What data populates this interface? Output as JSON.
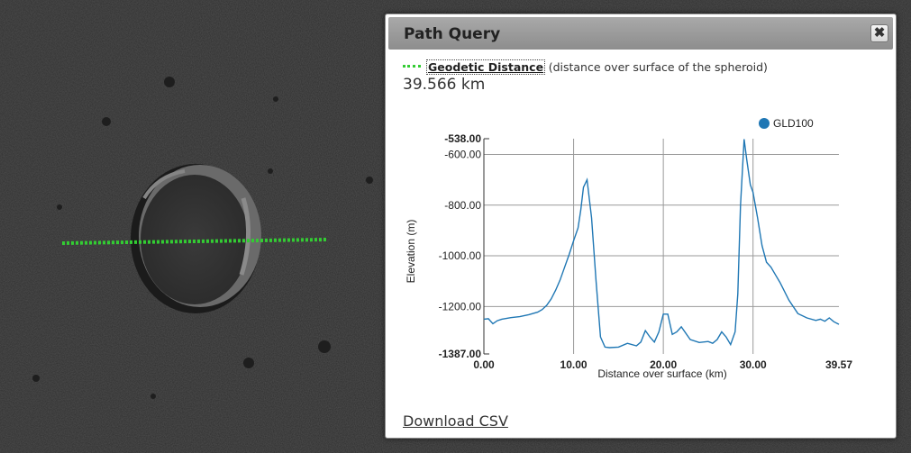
{
  "map": {
    "path_color": "#33cc33"
  },
  "panel": {
    "title": "Path Query",
    "close_label": "✖",
    "distance": {
      "type_label": "Geodetic Distance",
      "description": "(distance over surface of the spheroid)",
      "value": "39.566 km",
      "legend_color": "#33cc33"
    },
    "download_label": "Download CSV"
  },
  "chart_data": {
    "type": "line",
    "xlabel": "Distance over surface (km)",
    "ylabel": "Elevation (m)",
    "xlim": [
      0,
      39.57
    ],
    "ylim": [
      -1387,
      -538
    ],
    "x_ticks": [
      "0.00",
      "10.00",
      "20.00",
      "30.00",
      "39.57"
    ],
    "y_ticks": [
      "-538.00",
      "-600.00",
      "-800.00",
      "-1000.00",
      "-1200.00",
      "-1387.00"
    ],
    "grid": true,
    "legend_position": "top-right",
    "series": [
      {
        "name": "GLD100",
        "color": "#1f77b4",
        "x": [
          0,
          0.5,
          1.0,
          1.5,
          2.0,
          2.5,
          3.0,
          4.0,
          5.0,
          6.0,
          6.5,
          7.0,
          7.5,
          8.0,
          8.5,
          9.0,
          9.5,
          10.0,
          10.5,
          10.8,
          11.1,
          11.5,
          12.0,
          12.5,
          13.0,
          13.5,
          14.0,
          15.0,
          16.0,
          17.0,
          17.5,
          18.0,
          18.5,
          19.0,
          19.5,
          20.0,
          20.5,
          21.0,
          21.5,
          22.0,
          23.0,
          24.0,
          25.0,
          25.5,
          26.0,
          26.5,
          27.0,
          27.5,
          28.0,
          28.3,
          28.6,
          29.0,
          29.3,
          29.7,
          30.0,
          30.5,
          31.0,
          31.5,
          32.0,
          32.5,
          33.0,
          34.0,
          35.0,
          36.0,
          37.0,
          37.5,
          38.0,
          38.5,
          39.0,
          39.57
        ],
        "values": [
          -1250,
          -1248,
          -1268,
          -1256,
          -1250,
          -1247,
          -1244,
          -1240,
          -1232,
          -1222,
          -1212,
          -1195,
          -1170,
          -1135,
          -1095,
          -1045,
          -995,
          -940,
          -890,
          -820,
          -730,
          -700,
          -850,
          -1100,
          -1320,
          -1360,
          -1362,
          -1360,
          -1345,
          -1355,
          -1340,
          -1295,
          -1320,
          -1340,
          -1300,
          -1230,
          -1230,
          -1310,
          -1300,
          -1280,
          -1330,
          -1342,
          -1338,
          -1345,
          -1330,
          -1300,
          -1320,
          -1350,
          -1300,
          -1150,
          -800,
          -540,
          -620,
          -720,
          -750,
          -850,
          -960,
          -1025,
          -1045,
          -1075,
          -1105,
          -1175,
          -1228,
          -1245,
          -1255,
          -1250,
          -1258,
          -1245,
          -1260,
          -1270
        ]
      }
    ]
  }
}
